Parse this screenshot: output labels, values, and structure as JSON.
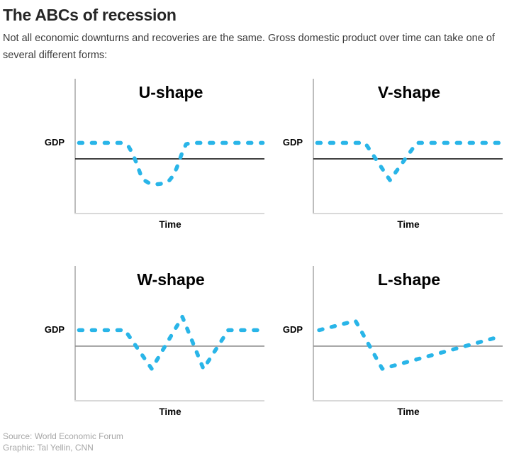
{
  "header": {
    "title": "The ABCs of recession",
    "subtitle": "Not all economic downturns and recoveries are the same. Gross domestic product over time can take one of several different forms:"
  },
  "footer": {
    "source": "Source: World Economic Forum",
    "credit": "Graphic: Tal Yellin, CNN"
  },
  "colors": {
    "curve": "#29b5e8",
    "baseline_dark": "#1a1a1a",
    "baseline_gray": "#8f8f8f",
    "y_axis": "#bdbdbd",
    "x_axis": "#d9d9d9"
  },
  "chart_data": [
    {
      "type": "line",
      "title": "U-shape",
      "xlabel": "Time",
      "ylabel": "GDP",
      "legend": "none",
      "grid": false,
      "baseline_y": 41,
      "baseline_color": "#1a1a1a",
      "x_range": [
        0,
        100
      ],
      "y_range": [
        0,
        100
      ],
      "points": [
        [
          2,
          53
        ],
        [
          25,
          53
        ],
        [
          28,
          50
        ],
        [
          30,
          45
        ],
        [
          32,
          38
        ],
        [
          34,
          30
        ],
        [
          36,
          25
        ],
        [
          39,
          22.5
        ],
        [
          43,
          22
        ],
        [
          46,
          22.5
        ],
        [
          49,
          24.5
        ],
        [
          51,
          28
        ],
        [
          53,
          34
        ],
        [
          55,
          42
        ],
        [
          56.5,
          48
        ],
        [
          58,
          52
        ],
        [
          61,
          53
        ],
        [
          98,
          53
        ]
      ]
    },
    {
      "type": "line",
      "title": "V-shape",
      "xlabel": "Time",
      "ylabel": "GDP",
      "legend": "none",
      "grid": false,
      "baseline_y": 41,
      "baseline_color": "#1a1a1a",
      "x_range": [
        0,
        100
      ],
      "y_range": [
        0,
        100
      ],
      "points": [
        [
          2,
          53
        ],
        [
          27,
          53
        ],
        [
          40,
          25
        ],
        [
          54,
          53
        ],
        [
          98,
          53
        ]
      ]
    },
    {
      "type": "line",
      "title": "W-shape",
      "xlabel": "Time",
      "ylabel": "GDP",
      "legend": "none",
      "grid": false,
      "baseline_y": 41,
      "baseline_color": "#8f8f8f",
      "x_range": [
        0,
        100
      ],
      "y_range": [
        0,
        100
      ],
      "points": [
        [
          2,
          53
        ],
        [
          26,
          53
        ],
        [
          40,
          24
        ],
        [
          56,
          63
        ],
        [
          67,
          24
        ],
        [
          80,
          53
        ],
        [
          98,
          53
        ]
      ]
    },
    {
      "type": "line",
      "title": "L-shape",
      "xlabel": "Time",
      "ylabel": "GDP",
      "legend": "none",
      "grid": false,
      "baseline_y": 41,
      "baseline_color": "#8f8f8f",
      "x_range": [
        0,
        100
      ],
      "y_range": [
        0,
        100
      ],
      "points": [
        [
          3,
          53
        ],
        [
          22,
          60
        ],
        [
          36,
          24
        ],
        [
          97,
          48
        ]
      ]
    }
  ]
}
